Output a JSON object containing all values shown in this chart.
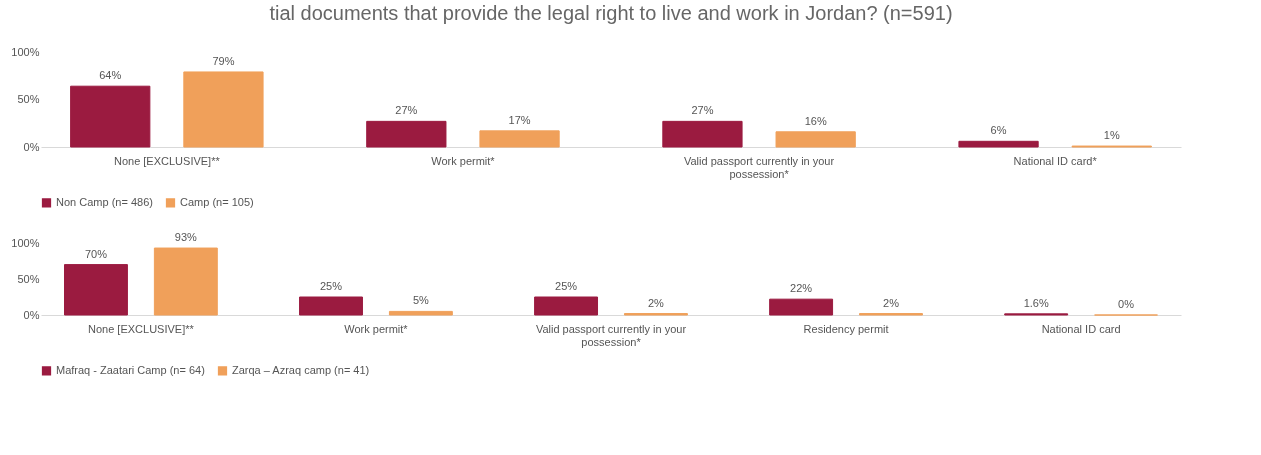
{
  "chart_data": [
    {
      "type": "bar",
      "title": "tial documents that provide the legal right to live and work in Jordan? (n=591)",
      "categories": [
        "None [EXCLUSIVE]**",
        "Work permit*",
        "Valid passport currently in your possession*",
        "National ID card*"
      ],
      "series": [
        {
          "name": "Non Camp (n= 486)",
          "color": "#9b1b40",
          "values": [
            64,
            27,
            27,
            6
          ],
          "value_labels": [
            "64%",
            "27%",
            "27%",
            "6%"
          ]
        },
        {
          "name": "Camp (n= 105)",
          "color": "#f0a05a",
          "values": [
            79,
            17,
            16,
            1
          ],
          "value_labels": [
            "79%",
            "17%",
            "16%",
            "1%"
          ]
        }
      ],
      "ylim": [
        0,
        100
      ],
      "yticks": [
        {
          "value": 0,
          "label": "0%"
        },
        {
          "value": 50,
          "label": "50%"
        },
        {
          "value": 100,
          "label": "100%"
        }
      ],
      "legend": "bottom"
    },
    {
      "type": "bar",
      "categories": [
        "None [EXCLUSIVE]**",
        "Work permit*",
        "Valid passport currently in your possession*",
        "Residency permit",
        "National ID card"
      ],
      "series": [
        {
          "name": "Mafraq - Zaatari Camp (n= 64)",
          "color": "#9b1b40",
          "values": [
            70,
            25,
            25,
            22,
            1.6
          ],
          "value_labels": [
            "70%",
            "25%",
            "25%",
            "22%",
            "1.6%"
          ]
        },
        {
          "name": "Zarqa – Azraq camp (n= 41)",
          "color": "#f0a05a",
          "values": [
            93,
            5,
            2,
            2,
            0
          ],
          "value_labels": [
            "93%",
            "5%",
            "2%",
            "2%",
            "0%"
          ]
        }
      ],
      "ylim": [
        0,
        100
      ],
      "yticks": [
        {
          "value": 0,
          "label": "0%"
        },
        {
          "value": 50,
          "label": "50%"
        },
        {
          "value": 100,
          "label": "100%"
        }
      ],
      "legend": "bottom"
    }
  ]
}
